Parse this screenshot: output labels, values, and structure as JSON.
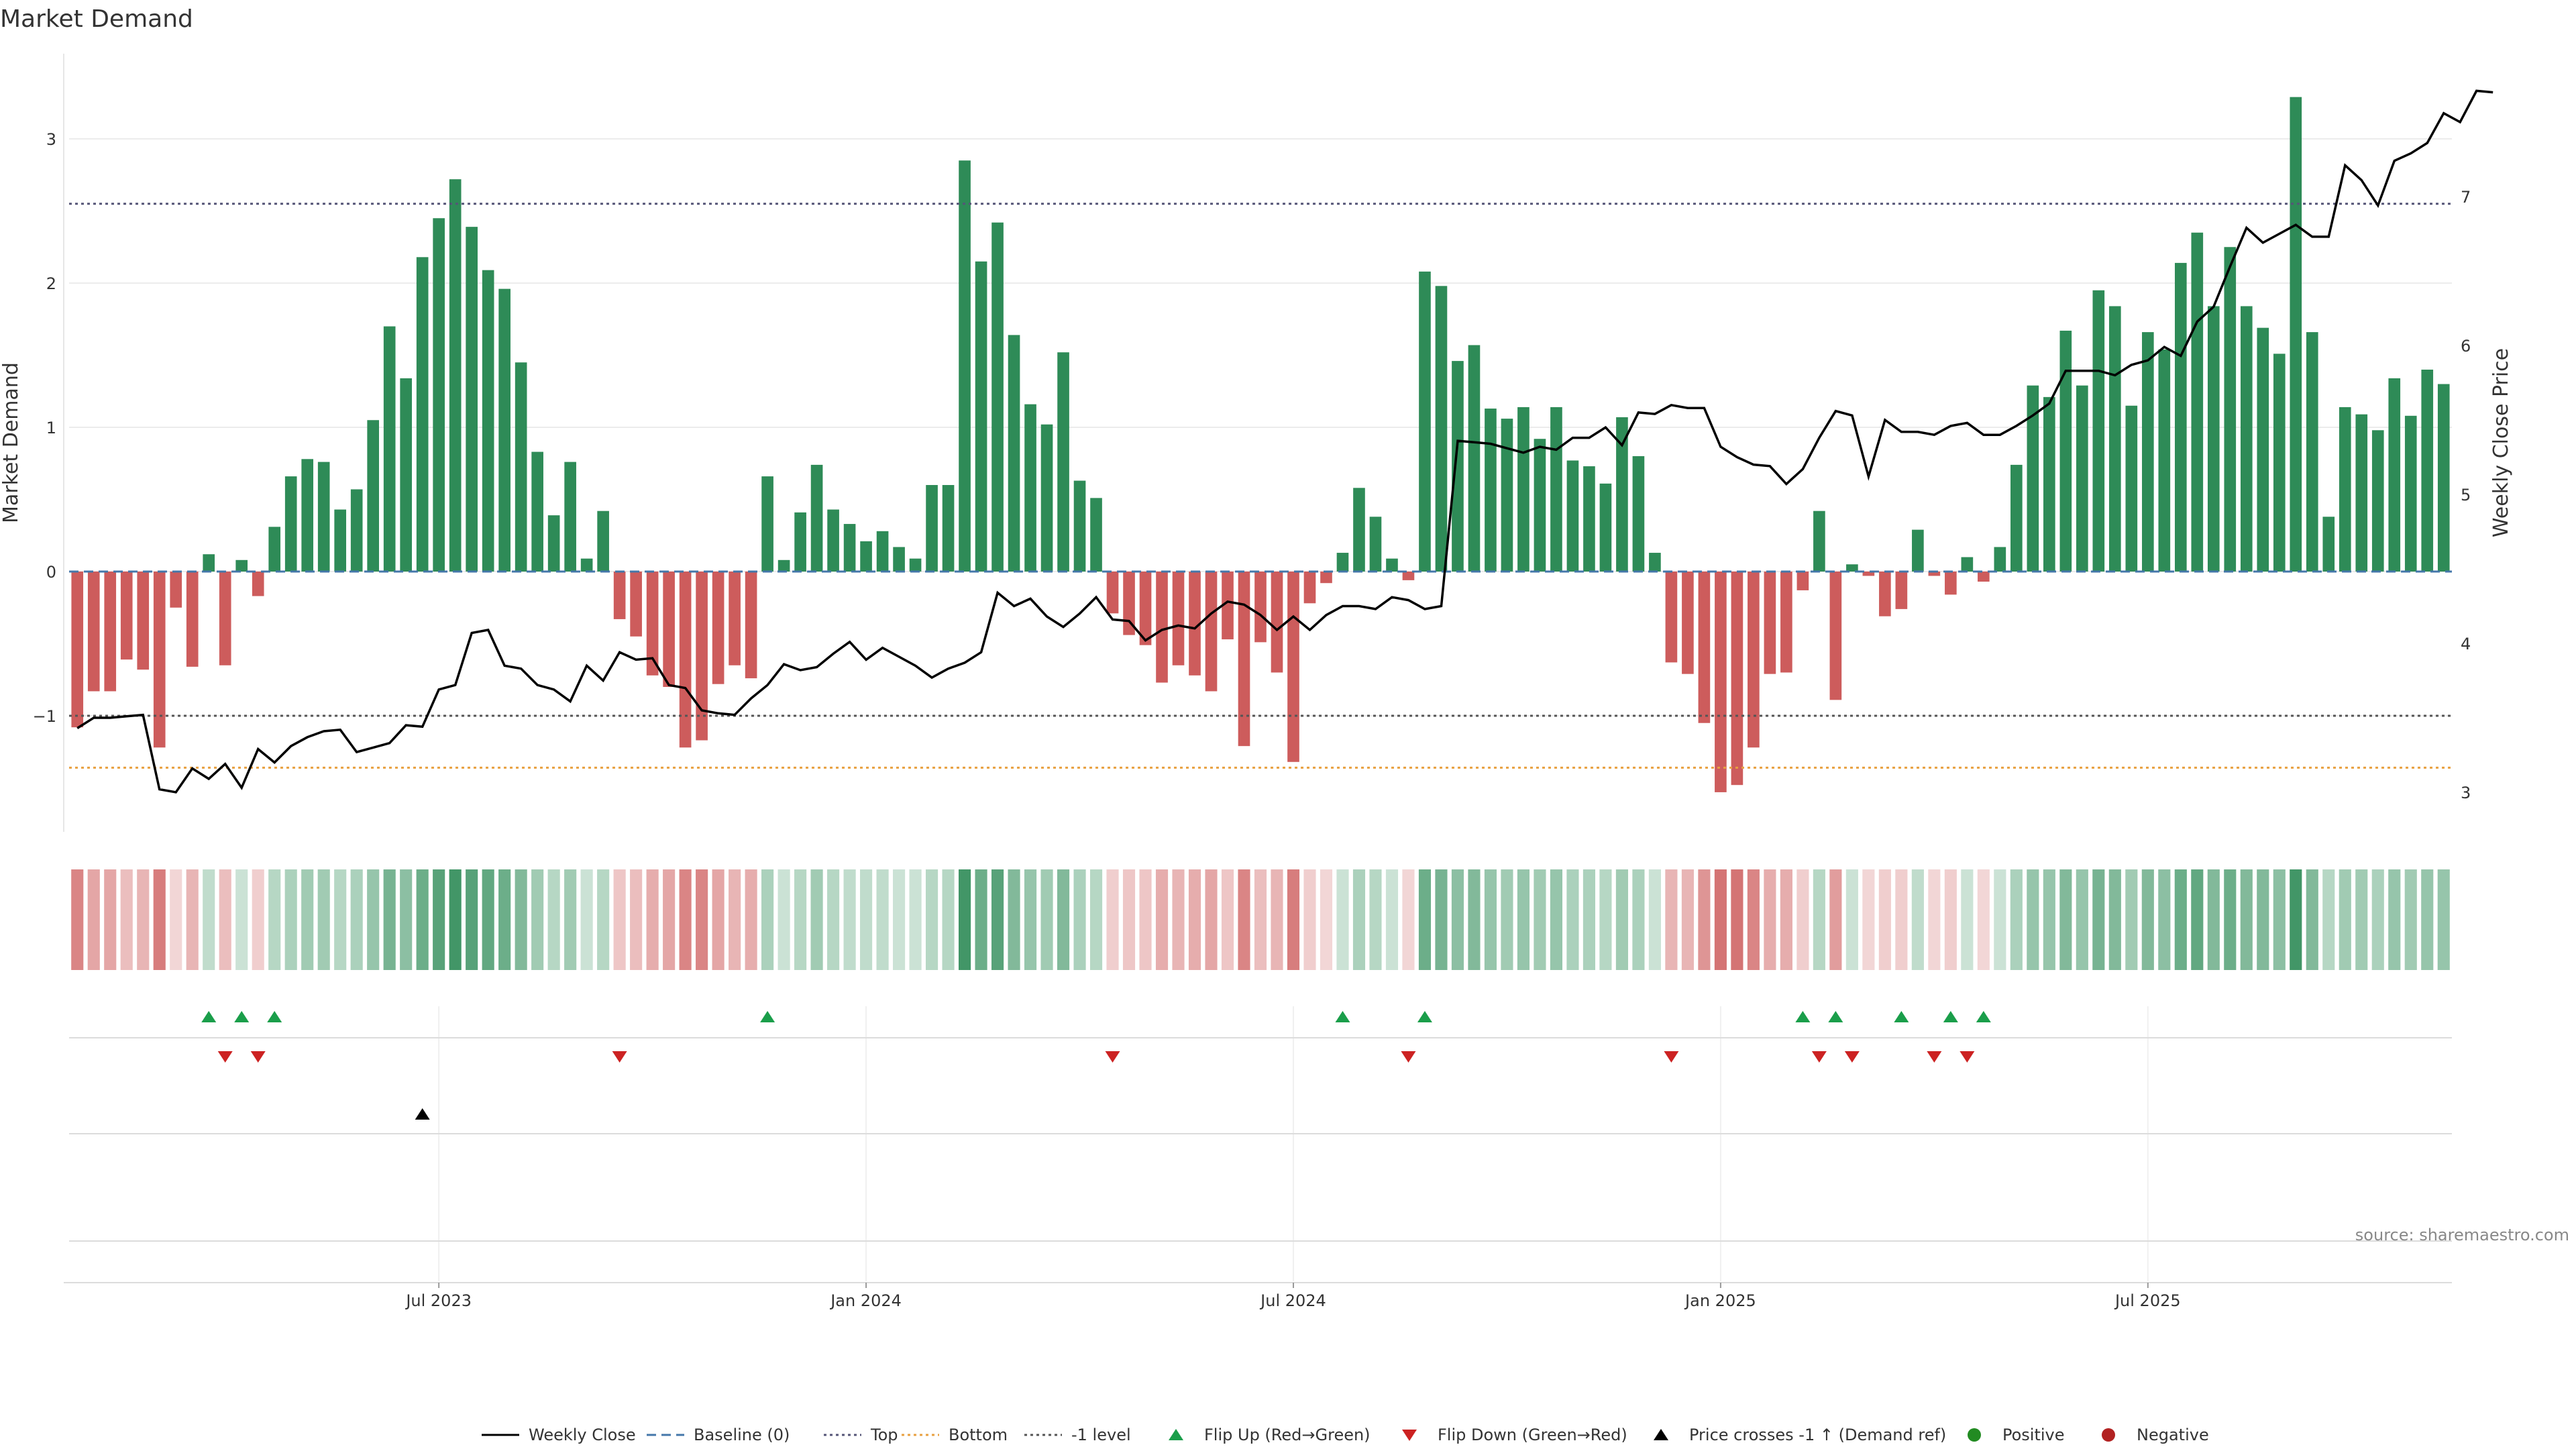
{
  "title": "Market Demand",
  "source_note": "source: sharemaestro.com",
  "chart_data": {
    "type": "bar",
    "title": "Market Demand",
    "ylabel_left": "Market Demand",
    "ylabel_right": "Weekly Close Price",
    "ylim_left": [
      -1.8,
      3.55
    ],
    "ylim_right": [
      2.85,
      7.85
    ],
    "yticks_left": [
      -1,
      0,
      1,
      2,
      3
    ],
    "ytick_labels_left": [
      "−1",
      "0",
      "1",
      "2",
      "3"
    ],
    "yticks_right": [
      3,
      4,
      5,
      6,
      7
    ],
    "ytick_labels_right": [
      "3",
      "4",
      "5",
      "6",
      "7"
    ],
    "x_tick_index": [
      22,
      48,
      74,
      100,
      126
    ],
    "x_tick_labels": [
      "Jul 2023",
      "Jan 2024",
      "Jul 2024",
      "Jan 2025",
      "Jul 2025"
    ],
    "reference_lines": {
      "top": 2.55,
      "bottom": -1.36,
      "minus_one_level": -1,
      "baseline": 0
    },
    "colors": {
      "positive_bar": "#2e8b57",
      "negative_bar": "#cd5c5c",
      "price_line": "#000000",
      "baseline": "#4477aa",
      "top_line": "#555577",
      "bottom_line": "#e8a040",
      "minus_one_line": "#555555",
      "flip_up": "#1a9e4a",
      "flip_down": "#cc2222",
      "price_cross": "#000000",
      "positive_dot": "#228b22",
      "negative_dot": "#b22222"
    },
    "demand": [
      -1.08,
      -0.83,
      -0.83,
      -0.61,
      -0.68,
      -1.22,
      -0.25,
      -0.66,
      0.12,
      -0.65,
      0.08,
      -0.17,
      0.31,
      0.66,
      0.78,
      0.76,
      0.43,
      0.57,
      1.05,
      1.7,
      1.34,
      2.18,
      2.45,
      2.72,
      2.39,
      2.09,
      1.96,
      1.45,
      0.83,
      0.39,
      0.76,
      0.09,
      0.42,
      -0.33,
      -0.45,
      -0.72,
      -0.8,
      -1.22,
      -1.17,
      -0.78,
      -0.65,
      -0.74,
      0.66,
      0.08,
      0.41,
      0.74,
      0.43,
      0.33,
      0.21,
      0.28,
      0.17,
      0.09,
      0.6,
      0.6,
      2.85,
      2.15,
      2.42,
      1.64,
      1.16,
      1.02,
      1.52,
      0.63,
      0.51,
      -0.29,
      -0.44,
      -0.51,
      -0.77,
      -0.65,
      -0.72,
      -0.83,
      -0.47,
      -1.21,
      -0.49,
      -0.7,
      -1.32,
      -0.22,
      -0.08,
      0.13,
      0.58,
      0.38,
      0.09,
      -0.06,
      2.08,
      1.98,
      1.46,
      1.57,
      1.13,
      1.06,
      1.14,
      0.92,
      1.14,
      0.77,
      0.73,
      0.61,
      1.07,
      0.8,
      0.13,
      -0.63,
      -0.71,
      -1.05,
      -1.53,
      -1.48,
      -1.22,
      -0.71,
      -0.7,
      -0.13,
      0.42,
      -0.89,
      0.05,
      -0.03,
      -0.31,
      -0.26,
      0.29,
      -0.03,
      -0.16,
      0.1,
      -0.07,
      0.17,
      0.74,
      1.29,
      1.21,
      1.67,
      1.29,
      1.95,
      1.84,
      1.15,
      1.66,
      1.54,
      2.14,
      2.35,
      1.84,
      2.25,
      1.84,
      1.69,
      1.51,
      3.29,
      1.66,
      0.38,
      1.14,
      1.09,
      0.98,
      1.34,
      1.08,
      1.4,
      1.3
    ],
    "price": [
      3.43,
      3.5,
      3.5,
      3.51,
      3.52,
      3.02,
      3.0,
      3.16,
      3.09,
      3.19,
      3.03,
      3.29,
      3.2,
      3.31,
      3.37,
      3.41,
      3.42,
      3.27,
      3.3,
      3.33,
      3.45,
      3.44,
      3.69,
      3.72,
      4.07,
      4.09,
      3.85,
      3.83,
      3.72,
      3.69,
      3.61,
      3.85,
      3.75,
      3.94,
      3.89,
      3.9,
      3.72,
      3.7,
      3.55,
      3.53,
      3.52,
      3.63,
      3.72,
      3.86,
      3.82,
      3.84,
      3.93,
      4.01,
      3.89,
      3.97,
      3.91,
      3.85,
      3.77,
      3.83,
      3.87,
      3.94,
      4.34,
      4.25,
      4.3,
      4.18,
      4.11,
      4.2,
      4.31,
      4.16,
      4.15,
      4.02,
      4.09,
      4.12,
      4.1,
      4.2,
      4.28,
      4.26,
      4.19,
      4.09,
      4.18,
      4.09,
      4.19,
      4.25,
      4.25,
      4.23,
      4.31,
      4.29,
      4.23,
      4.25,
      5.36,
      5.35,
      5.34,
      5.31,
      5.28,
      5.32,
      5.3,
      5.38,
      5.38,
      5.45,
      5.33,
      5.55,
      5.54,
      5.6,
      5.58,
      5.58,
      5.32,
      5.25,
      5.2,
      5.19,
      5.07,
      5.17,
      5.38,
      5.56,
      5.53,
      5.12,
      5.5,
      5.42,
      5.42,
      5.4,
      5.46,
      5.48,
      5.4,
      5.4,
      5.46,
      5.53,
      5.61,
      5.83,
      5.83,
      5.83,
      5.8,
      5.87,
      5.9,
      5.99,
      5.93,
      6.16,
      6.26,
      6.53,
      6.79,
      6.69,
      6.75,
      6.81,
      6.73,
      6.73,
      7.21,
      7.11,
      6.94,
      7.24,
      7.29,
      7.36,
      7.56,
      7.5,
      7.71,
      7.7
    ],
    "strip_opacity": [
      0.75,
      0.55,
      0.55,
      0.4,
      0.45,
      0.8,
      0.25,
      0.45,
      0.3,
      0.4,
      0.25,
      0.3,
      0.35,
      0.4,
      0.45,
      0.45,
      0.35,
      0.4,
      0.5,
      0.65,
      0.55,
      0.7,
      0.8,
      0.9,
      0.8,
      0.75,
      0.7,
      0.6,
      0.45,
      0.35,
      0.45,
      0.25,
      0.35,
      0.35,
      0.4,
      0.5,
      0.55,
      0.75,
      0.75,
      0.55,
      0.45,
      0.5,
      0.4,
      0.25,
      0.35,
      0.45,
      0.35,
      0.3,
      0.3,
      0.3,
      0.25,
      0.25,
      0.35,
      0.35,
      0.9,
      0.7,
      0.8,
      0.6,
      0.5,
      0.45,
      0.6,
      0.4,
      0.35,
      0.3,
      0.35,
      0.35,
      0.5,
      0.45,
      0.5,
      0.55,
      0.35,
      0.75,
      0.4,
      0.45,
      0.8,
      0.3,
      0.25,
      0.25,
      0.4,
      0.35,
      0.25,
      0.25,
      0.7,
      0.65,
      0.55,
      0.6,
      0.5,
      0.45,
      0.5,
      0.45,
      0.5,
      0.4,
      0.4,
      0.35,
      0.45,
      0.4,
      0.25,
      0.45,
      0.45,
      0.65,
      0.85,
      0.85,
      0.75,
      0.5,
      0.5,
      0.3,
      0.35,
      0.6,
      0.25,
      0.25,
      0.3,
      0.3,
      0.3,
      0.25,
      0.3,
      0.25,
      0.25,
      0.25,
      0.4,
      0.5,
      0.5,
      0.6,
      0.5,
      0.65,
      0.6,
      0.45,
      0.6,
      0.55,
      0.7,
      0.75,
      0.6,
      0.7,
      0.6,
      0.6,
      0.55,
      0.9,
      0.6,
      0.35,
      0.45,
      0.45,
      0.4,
      0.5,
      0.45,
      0.5,
      0.5
    ],
    "flip_up_index": [
      8,
      10,
      12,
      42,
      77,
      82,
      105,
      107,
      111,
      114,
      116
    ],
    "flip_down_index": [
      9,
      11,
      33,
      63,
      81,
      97,
      106,
      108,
      113,
      115
    ],
    "price_cross_up_index": [
      21
    ],
    "legend_position": "bottom-center",
    "grid": true
  },
  "legend": [
    {
      "label": "Weekly Close",
      "icon": "solid-line"
    },
    {
      "label": "Baseline (0)",
      "icon": "dashed-line"
    },
    {
      "label": "Top",
      "icon": "dotted-line"
    },
    {
      "label": "Bottom",
      "icon": "dotted-line"
    },
    {
      "label": "-1 level",
      "icon": "dotted-line"
    },
    {
      "label": "Flip Up (Red→Green)",
      "icon": "triangle-up"
    },
    {
      "label": "Flip Down (Green→Red)",
      "icon": "triangle-down"
    },
    {
      "label": "Price crosses -1 ↑ (Demand ref)",
      "icon": "triangle-up"
    },
    {
      "label": "Positive",
      "icon": "dot"
    },
    {
      "label": "Negative",
      "icon": "dot"
    }
  ]
}
